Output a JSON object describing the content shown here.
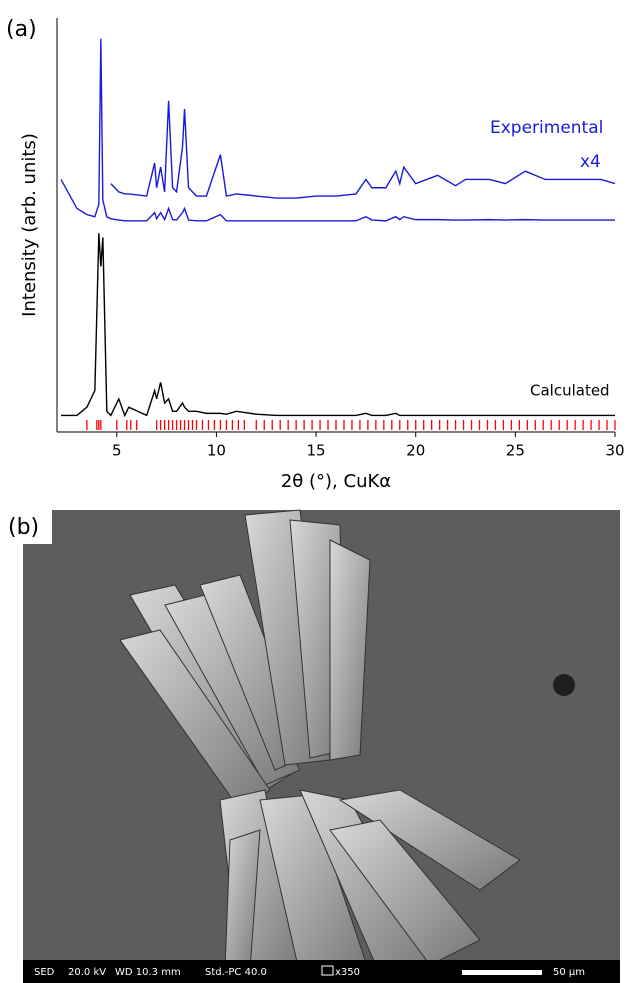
{
  "chart_data": {
    "type": "line",
    "panel_label": "(a)",
    "x_label": "2θ (°), CuKα",
    "y_label": "Intensity (arb. units)",
    "xlim": [
      2,
      30
    ],
    "xticks": [
      5,
      10,
      15,
      20,
      25,
      30
    ],
    "ylim": [
      0,
      100
    ],
    "x": [
      2.2,
      3.0,
      3.5,
      3.9,
      4.1,
      4.2,
      4.3,
      4.5,
      4.7,
      5.1,
      5.4,
      5.6,
      6.5,
      6.9,
      7.0,
      7.2,
      7.4,
      7.6,
      7.8,
      8.0,
      8.3,
      8.4,
      8.6,
      9.0,
      9.5,
      10.2,
      10.5,
      11.0,
      12,
      13,
      14,
      15,
      16,
      17,
      17.5,
      17.8,
      18.5,
      19.0,
      19.2,
      19.4,
      20,
      21.1,
      22,
      22.5,
      23.7,
      24.5,
      25.5,
      26.5,
      27.5,
      28.5,
      29.3,
      30
    ],
    "series": [
      {
        "name": "Experimental",
        "color": "#1a1adc",
        "values": [
          61,
          54,
          52.5,
          52,
          55,
          95,
          56,
          52,
          51.5,
          51.2,
          51,
          51,
          51,
          53,
          51.5,
          53,
          51.3,
          54,
          51.3,
          51.2,
          53,
          54,
          51.2,
          51,
          51,
          52.5,
          51,
          51,
          51,
          51,
          51,
          51,
          51,
          51,
          52,
          51.2,
          51,
          52,
          51.3,
          52,
          51.3,
          51.3,
          51.2,
          51.2,
          51.3,
          51.2,
          51.3,
          51.2,
          51.2,
          51.2,
          51.2,
          51.2
        ]
      },
      {
        "name": "x4",
        "color": "#1a1adc",
        "values": [
          null,
          null,
          null,
          null,
          null,
          null,
          null,
          null,
          60,
          58,
          57.5,
          57.5,
          57,
          65,
          59,
          64,
          58,
          80,
          59,
          58,
          69,
          78,
          59,
          57,
          57,
          67,
          57,
          57.5,
          57,
          56.5,
          56.5,
          57,
          57,
          57.5,
          61,
          59,
          59,
          63,
          60,
          64,
          60,
          62,
          59.5,
          61,
          61,
          60,
          63,
          61,
          61,
          61,
          61,
          60
        ]
      },
      {
        "name": "Calculated",
        "color": "#000000",
        "values": [
          4,
          4,
          6,
          10,
          48,
          40,
          47,
          5,
          4,
          8,
          4,
          6,
          4,
          10,
          8,
          12,
          7,
          8,
          5,
          5,
          7,
          6,
          5,
          5,
          4.5,
          4.5,
          4.3,
          5,
          4.3,
          4,
          4,
          4,
          4,
          4,
          4.5,
          4,
          4,
          4.5,
          4,
          4,
          4,
          4,
          4,
          4,
          4,
          4,
          4,
          4,
          4,
          4,
          4,
          4
        ]
      }
    ],
    "reflections": {
      "color": "#ff0000",
      "x": [
        3.5,
        4.0,
        4.1,
        4.2,
        5.0,
        5.5,
        5.7,
        6.0,
        7.0,
        7.2,
        7.4,
        7.6,
        7.8,
        8.0,
        8.2,
        8.4,
        8.6,
        8.8,
        9.0,
        9.3,
        9.6,
        9.9,
        10.2,
        10.5,
        10.8,
        11.1,
        11.4,
        12.0,
        12.4,
        12.8,
        13.2,
        13.6,
        14.0,
        14.4,
        14.8,
        15.2,
        15.6,
        16.0,
        16.4,
        16.8,
        17.2,
        17.6,
        18.0,
        18.4,
        18.8,
        19.2,
        19.6,
        20.0,
        20.4,
        20.8,
        21.2,
        21.6,
        22.0,
        22.4,
        22.8,
        23.2,
        23.6,
        24.0,
        24.4,
        24.8,
        25.2,
        25.6,
        26.0,
        26.4,
        26.8,
        27.2,
        27.6,
        28.0,
        28.4,
        28.8,
        29.2,
        29.6,
        30.0
      ]
    }
  },
  "sem_image": {
    "panel_label": "(b)",
    "info_bar": [
      "SED",
      "20.0 kV",
      "WD 10.3 mm",
      "Std.-PC 40.0",
      "x350",
      "50 µm"
    ]
  }
}
